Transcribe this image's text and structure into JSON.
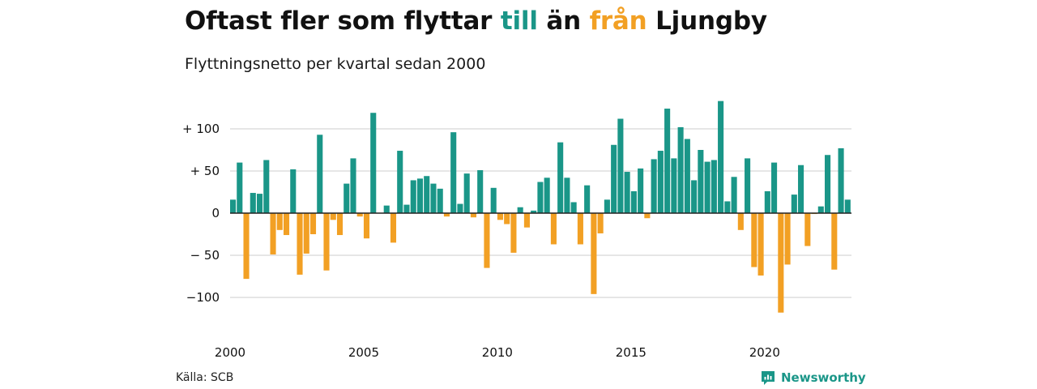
{
  "title": {
    "part1": "Oftast fler som flyttar ",
    "positive_word": "till",
    "part2": " än ",
    "negative_word": "från",
    "part3": " Ljungby"
  },
  "subtitle": "Flyttningsnetto per kvartal sedan 2000",
  "source": "Källa: SCB",
  "brand": {
    "name": "Newsworthy",
    "icon": "newsworthy-logo-icon"
  },
  "colors": {
    "positive": "#1a9688",
    "negative": "#f2a024",
    "grid": "#dddddd",
    "zero_line": "#222222"
  },
  "chart_data": {
    "type": "bar",
    "title": "Oftast fler som flyttar till än från Ljungby",
    "subtitle": "Flyttningsnetto per kvartal sedan 2000",
    "xlabel": "",
    "ylabel": "",
    "ylim": [
      -120,
      130
    ],
    "y_ticks": [
      {
        "value": 100,
        "label": "+ 100"
      },
      {
        "value": 50,
        "label": "+  50"
      },
      {
        "value": 0,
        "label": "0"
      },
      {
        "value": -50,
        "label": "− 50"
      },
      {
        "value": -100,
        "label": "−100"
      }
    ],
    "x_ticks": [
      {
        "value": 2000,
        "label": "2000"
      },
      {
        "value": 2005,
        "label": "2005"
      },
      {
        "value": 2010,
        "label": "2010"
      },
      {
        "value": 2015,
        "label": "2015"
      },
      {
        "value": 2020,
        "label": "2020"
      }
    ],
    "grid": true,
    "start_year": 2000,
    "quarters_per_year": 4,
    "values": [
      16,
      60,
      -78,
      24,
      23,
      63,
      -49,
      -20,
      -26,
      52,
      -73,
      -48,
      -25,
      93,
      -68,
      -8,
      -26,
      35,
      65,
      -4,
      -30,
      119,
      0,
      9,
      -35,
      74,
      10,
      39,
      41,
      44,
      35,
      29,
      -4,
      96,
      11,
      47,
      -5,
      51,
      -65,
      30,
      -8,
      -13,
      -47,
      7,
      -17,
      3,
      37,
      42,
      -37,
      84,
      42,
      13,
      -37,
      33,
      -96,
      -24,
      16,
      81,
      112,
      49,
      26,
      53,
      -6,
      64,
      74,
      124,
      65,
      102,
      88,
      39,
      75,
      61,
      63,
      133,
      14,
      43,
      -20,
      65,
      -64,
      -74,
      26,
      60,
      -118,
      -61,
      22,
      57,
      -39,
      -1,
      8,
      69,
      -67,
      77,
      16
    ]
  }
}
